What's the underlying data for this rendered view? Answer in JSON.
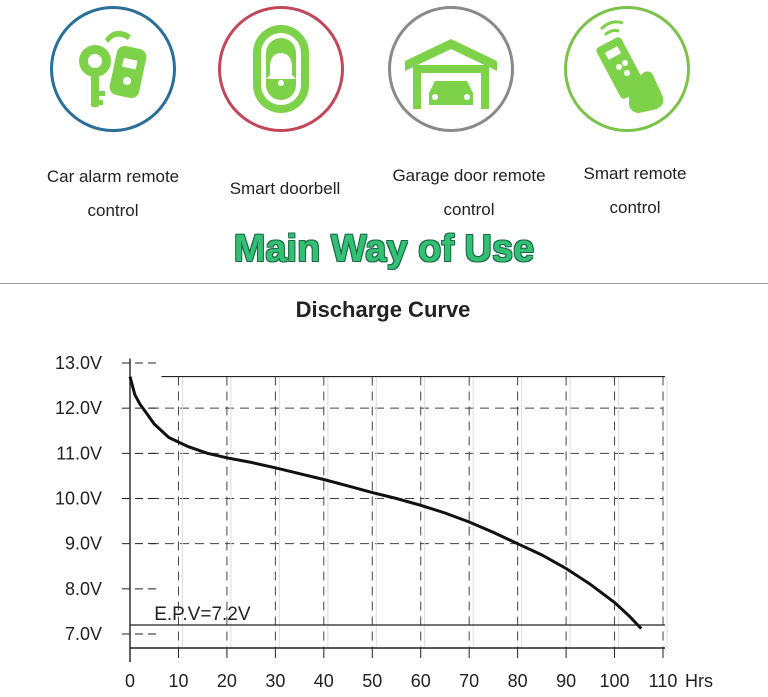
{
  "uses": [
    {
      "label": "Car alarm remote\ncontrol",
      "icon": "car-key-remote-icon",
      "ring_color": "#2a6f97"
    },
    {
      "label": "Smart doorbell",
      "icon": "doorbell-icon",
      "ring_color": "#c0485a"
    },
    {
      "label": "Garage door remote\ncontrol",
      "icon": "garage-icon",
      "ring_color": "#8a8a8a"
    },
    {
      "label": "Smart remote\ncontrol",
      "icon": "hand-remote-icon",
      "ring_color": "#7cc24a"
    }
  ],
  "headline": "Main Way of Use",
  "icon_color": "#7ed24a",
  "chart_data": {
    "type": "line",
    "title": "Discharge Curve",
    "xlabel": "Hrs",
    "ylabel": "",
    "xlim": [
      0,
      110
    ],
    "ylim": [
      7.0,
      13.0
    ],
    "x_ticks": [
      0,
      10,
      20,
      30,
      40,
      50,
      60,
      70,
      80,
      90,
      100,
      110
    ],
    "x_tick_labels": [
      "0",
      "10",
      "20",
      "30",
      "40",
      "50",
      "60",
      "70",
      "80",
      "90",
      "100",
      "110"
    ],
    "y_ticks": [
      7,
      8,
      9,
      10,
      11,
      12,
      13
    ],
    "y_tick_labels": [
      "7.0V",
      "8.0V",
      "9.0V",
      "10.0V",
      "11.0V",
      "12.0V",
      "13.0V"
    ],
    "grid": true,
    "annotation": {
      "text": "E.P.V=7.2V",
      "y": 7.2
    },
    "series": [
      {
        "x": [
          0,
          0.5,
          1,
          2,
          3,
          5,
          8,
          12,
          16,
          20,
          25,
          30,
          35,
          40,
          45,
          50,
          55,
          60,
          65,
          70,
          75,
          80,
          85,
          90,
          95,
          100,
          103,
          105.5
        ],
        "y": [
          12.7,
          12.5,
          12.3,
          12.1,
          11.95,
          11.65,
          11.35,
          11.15,
          11.0,
          10.9,
          10.8,
          10.68,
          10.55,
          10.42,
          10.28,
          10.13,
          10.0,
          9.85,
          9.68,
          9.48,
          9.25,
          9.0,
          8.75,
          8.45,
          8.1,
          7.7,
          7.4,
          7.12
        ]
      }
    ]
  }
}
